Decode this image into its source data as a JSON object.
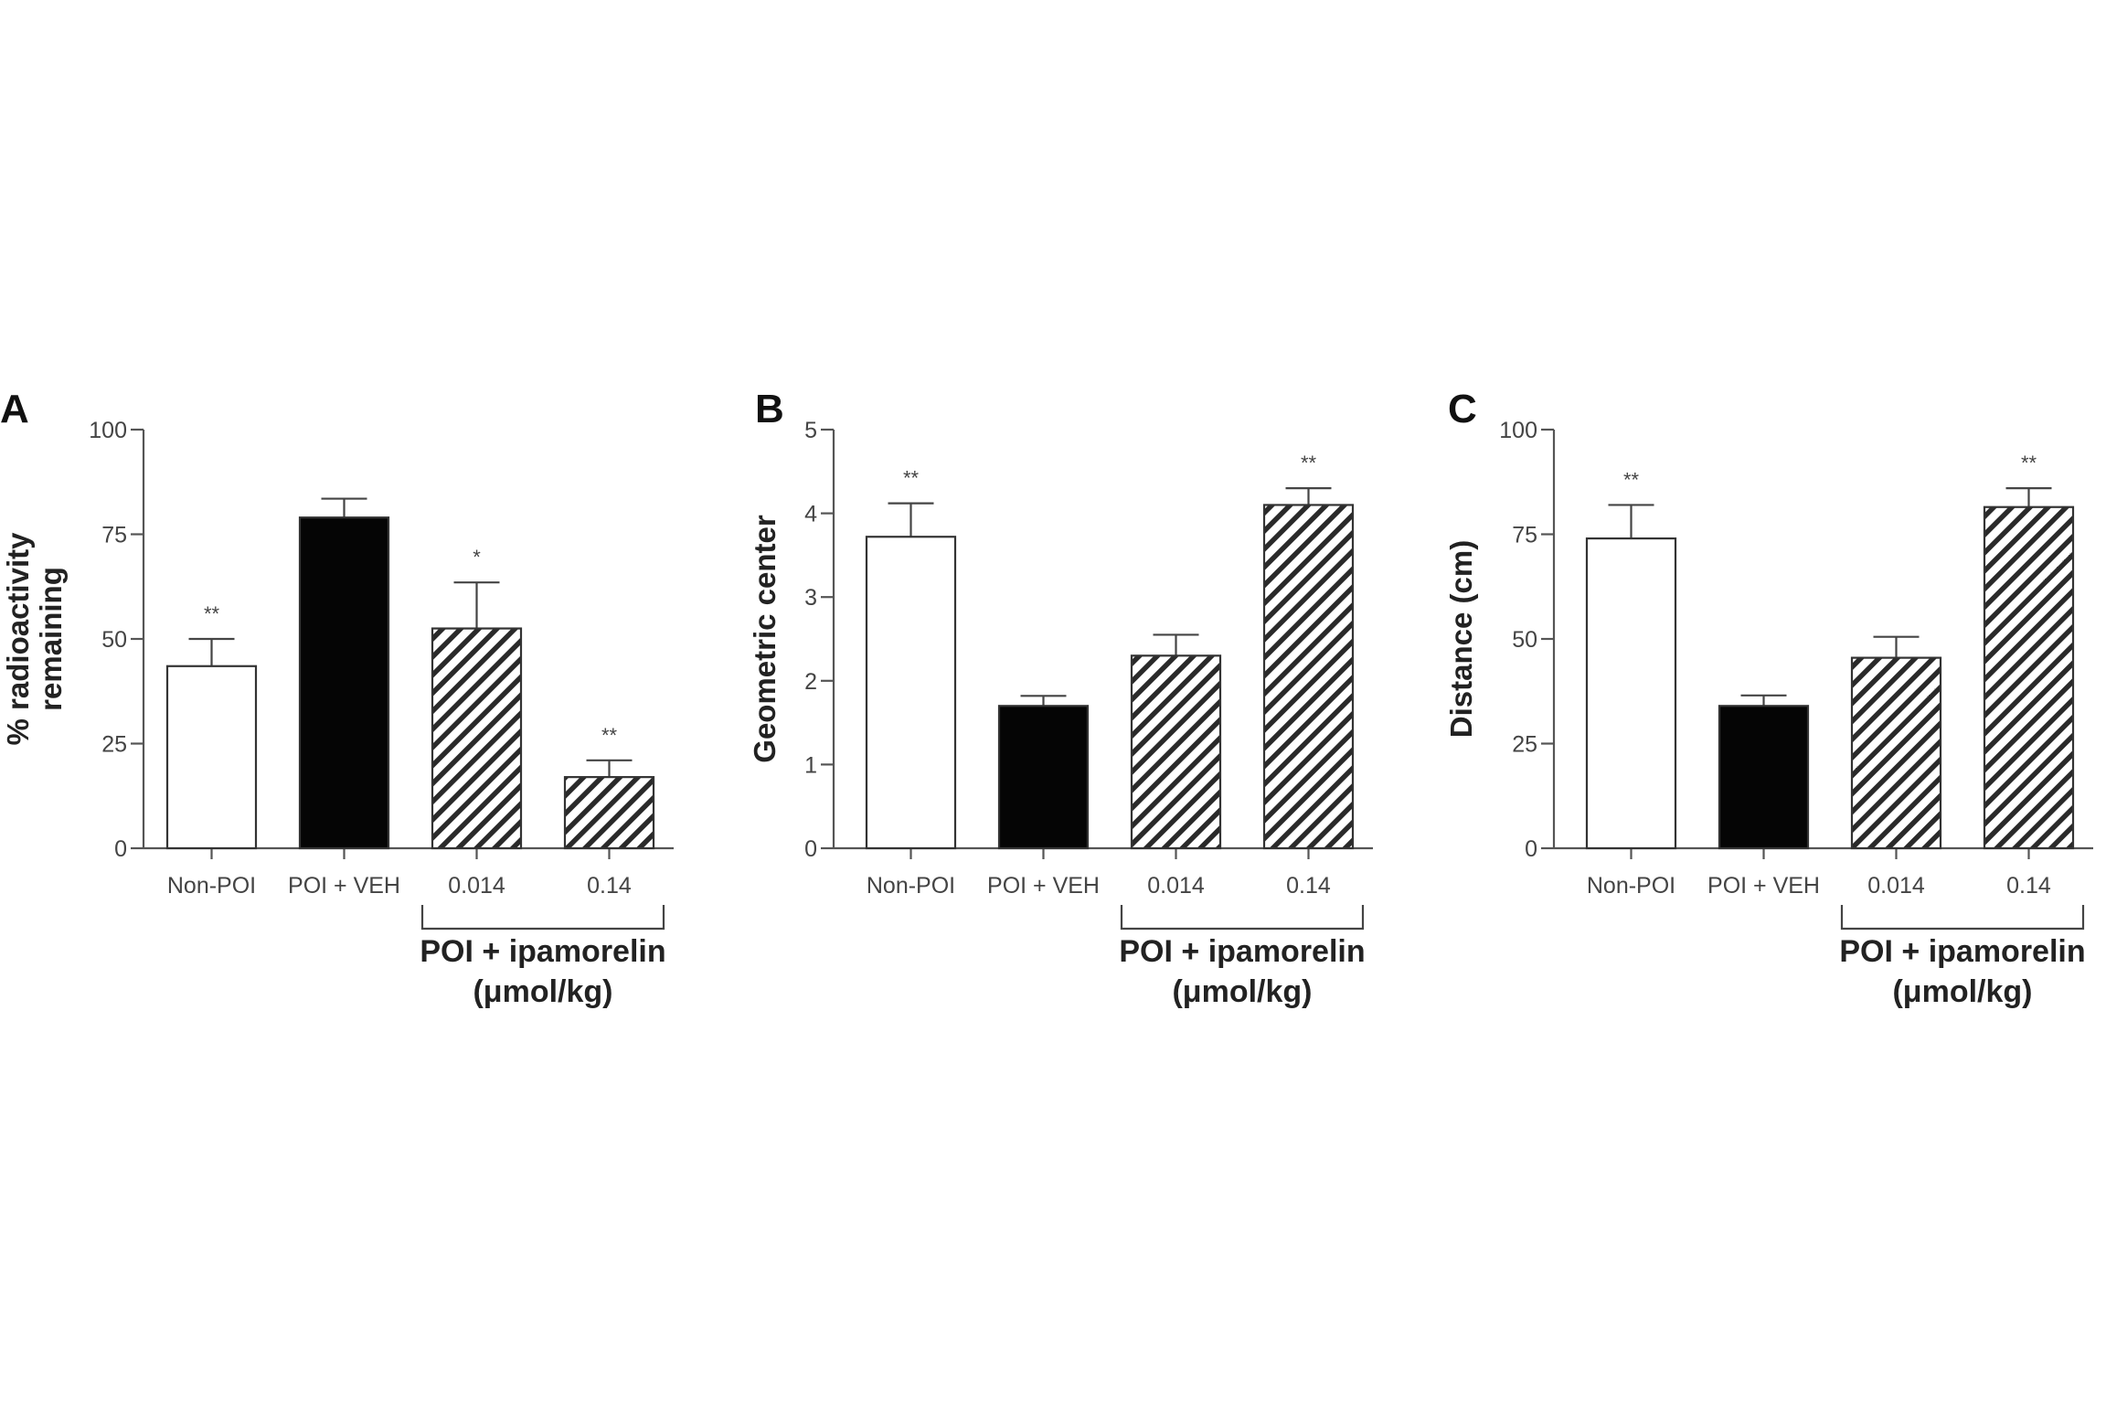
{
  "chart_data": [
    {
      "type": "bar",
      "panel": "A",
      "ylabel": [
        "% radioactivity",
        "remaining"
      ],
      "ylim": [
        0,
        100
      ],
      "yticks": [
        0,
        25,
        50,
        75,
        100
      ],
      "categories": [
        "Non-POI",
        "POI + VEH",
        "0.014",
        "0.14"
      ],
      "values": [
        43.5,
        79,
        52.5,
        17
      ],
      "errors": [
        6.5,
        4.5,
        11,
        4
      ],
      "significance": [
        "**",
        "",
        "*",
        "**"
      ],
      "fills": [
        "white",
        "black",
        "hatch",
        "hatch"
      ],
      "group_label": [
        "POI + ipamorelin",
        "(μmol/kg)"
      ]
    },
    {
      "type": "bar",
      "panel": "B",
      "ylabel": [
        "Geometric center"
      ],
      "ylim": [
        0,
        5
      ],
      "yticks": [
        0,
        1,
        2,
        3,
        4,
        5
      ],
      "categories": [
        "Non-POI",
        "POI + VEH",
        "0.014",
        "0.14"
      ],
      "values": [
        3.72,
        1.7,
        2.3,
        4.1
      ],
      "errors": [
        0.4,
        0.12,
        0.25,
        0.2
      ],
      "significance": [
        "**",
        "",
        "",
        "**"
      ],
      "fills": [
        "white",
        "black",
        "hatch",
        "hatch"
      ],
      "group_label": [
        "POI + ipamorelin",
        "(μmol/kg)"
      ]
    },
    {
      "type": "bar",
      "panel": "C",
      "ylabel": [
        "Distance (cm)"
      ],
      "ylim": [
        0,
        100
      ],
      "yticks": [
        0,
        25,
        50,
        75,
        100
      ],
      "categories": [
        "Non-POI",
        "POI + VEH",
        "0.014",
        "0.14"
      ],
      "values": [
        74,
        34,
        45.5,
        81.5
      ],
      "errors": [
        8,
        2.5,
        5,
        4.5
      ],
      "significance": [
        "**",
        "",
        "",
        "**"
      ],
      "fills": [
        "white",
        "black",
        "hatch",
        "hatch"
      ],
      "group_label": [
        "POI + ipamorelin",
        "(μmol/kg)"
      ]
    }
  ]
}
